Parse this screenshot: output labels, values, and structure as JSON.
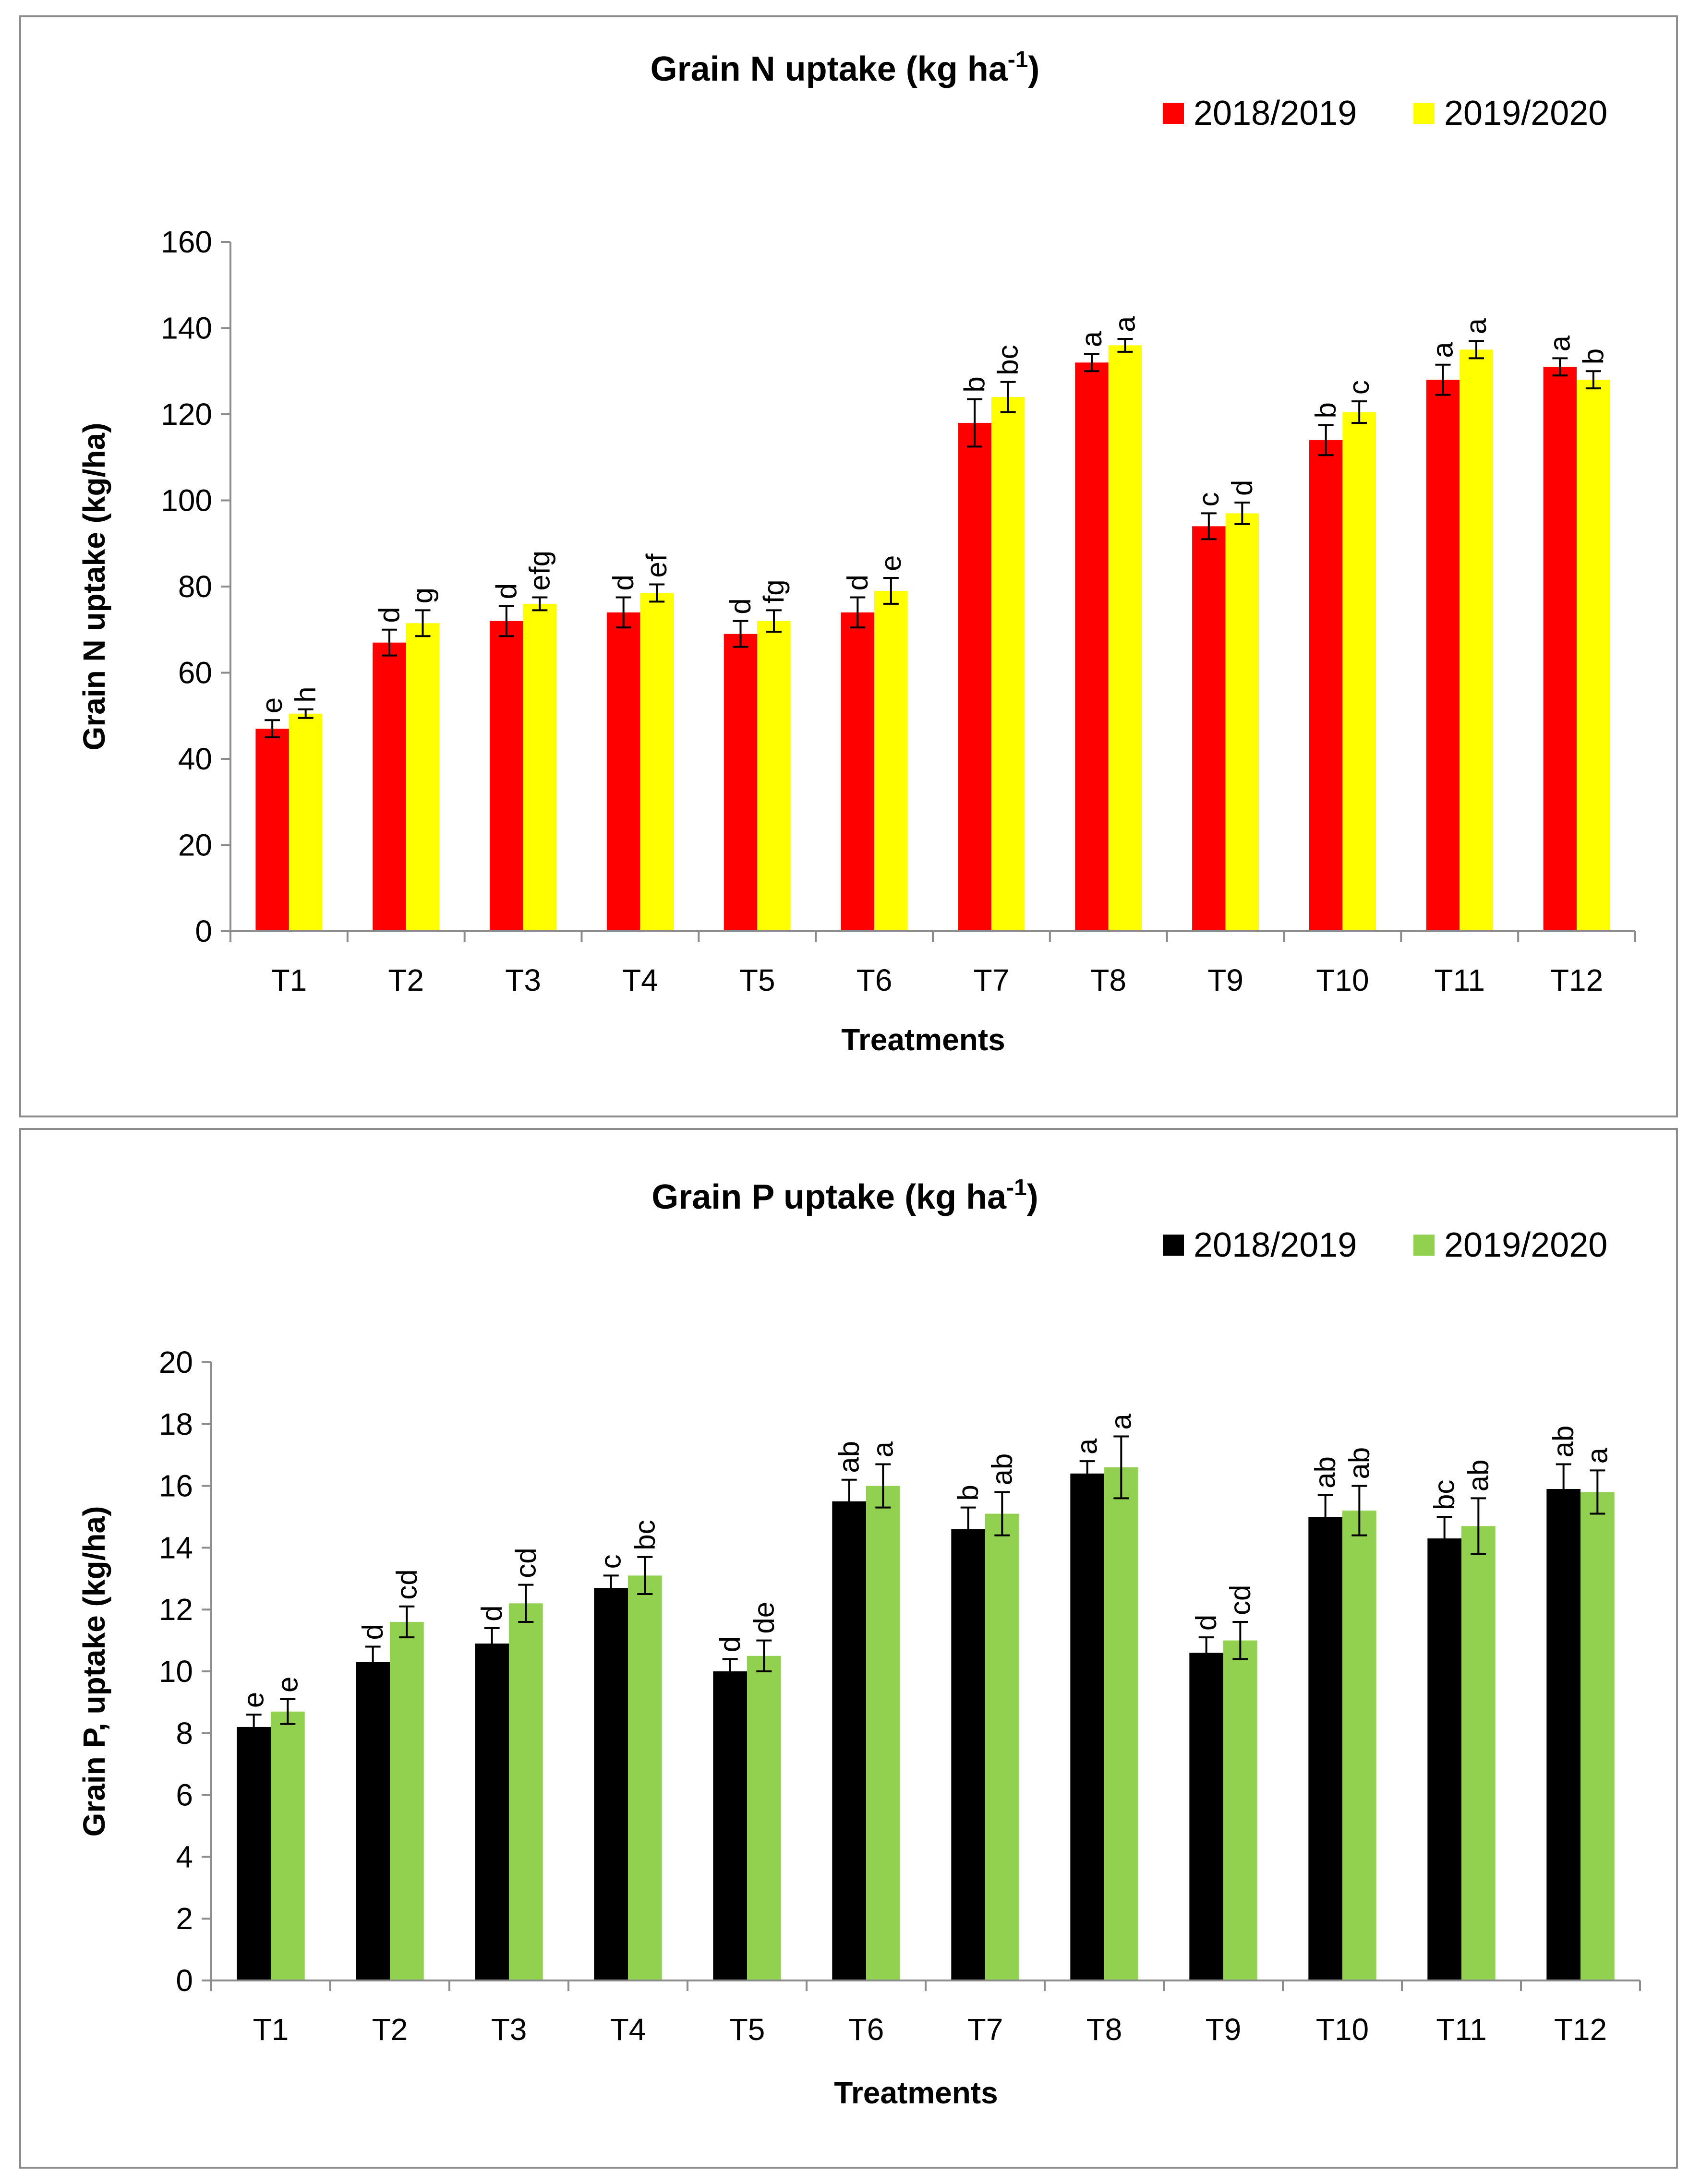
{
  "chart_data": [
    {
      "type": "bar",
      "title": "Grain N uptake (kg ha",
      "title_sup": "-1",
      "title_close": ")",
      "xlabel": "Treatments",
      "ylabel": "Grain N uptake (kg/ha)",
      "ylim": [
        0,
        160
      ],
      "yticks": [
        0,
        20,
        40,
        60,
        80,
        100,
        120,
        140,
        160
      ],
      "legend_position": "top-right",
      "categories": [
        "T1",
        "T2",
        "T3",
        "T4",
        "T5",
        "T6",
        "T7",
        "T8",
        "T9",
        "T10",
        "T11",
        "T12"
      ],
      "series": [
        {
          "name": "2018/2019",
          "color": "#ff0000",
          "values": [
            47,
            67,
            72,
            74,
            69,
            74,
            118,
            132,
            94,
            114,
            128,
            131
          ],
          "errors": [
            2,
            3,
            3.5,
            3.5,
            3,
            3.5,
            5.5,
            2,
            3,
            3.5,
            3.5,
            2
          ],
          "letters": [
            "e",
            "d",
            "d",
            "d",
            "d",
            "d",
            "b",
            "a",
            "c",
            "b",
            "a",
            "a"
          ]
        },
        {
          "name": "2019/2020",
          "color": "#ffff00",
          "values": [
            50.5,
            71.5,
            76,
            78.5,
            72,
            79,
            124,
            136,
            97,
            120.5,
            135,
            128
          ],
          "errors": [
            1,
            3,
            1.5,
            2,
            2.5,
            3,
            3.5,
            1.5,
            2.5,
            2.5,
            2,
            2
          ],
          "letters": [
            "h",
            "g",
            "efg",
            "ef",
            "fg",
            "e",
            "bc",
            "a",
            "d",
            "c",
            "a",
            "b"
          ]
        }
      ]
    },
    {
      "type": "bar",
      "title": "Grain P uptake (kg ha",
      "title_sup": "-1",
      "title_close": ")",
      "xlabel": "Treatments",
      "ylabel": "Grain P, uptake (kg/ha)",
      "ylim": [
        0,
        20
      ],
      "yticks": [
        0,
        2,
        4,
        6,
        8,
        10,
        12,
        14,
        16,
        18,
        20
      ],
      "legend_position": "top-right",
      "categories": [
        "T1",
        "T2",
        "T3",
        "T4",
        "T5",
        "T6",
        "T7",
        "T8",
        "T9",
        "T10",
        "T11",
        "T12"
      ],
      "series": [
        {
          "name": "2018/2019",
          "color": "#000000",
          "values": [
            8.2,
            10.3,
            10.9,
            12.7,
            10.0,
            15.5,
            14.6,
            16.4,
            10.6,
            15.0,
            14.3,
            15.9
          ],
          "errors": [
            0.4,
            0.5,
            0.5,
            0.4,
            0.4,
            0.7,
            0.7,
            0.4,
            0.5,
            0.7,
            0.7,
            0.8
          ],
          "letters": [
            "e",
            "d",
            "d",
            "c",
            "d",
            "ab",
            "b",
            "a",
            "d",
            "ab",
            "bc",
            "ab"
          ]
        },
        {
          "name": "2019/2020",
          "color": "#92d050",
          "values": [
            8.7,
            11.6,
            12.2,
            13.1,
            10.5,
            16.0,
            15.1,
            16.6,
            11.0,
            15.2,
            14.7,
            15.8
          ],
          "errors": [
            0.4,
            0.5,
            0.6,
            0.6,
            0.5,
            0.7,
            0.7,
            1.0,
            0.6,
            0.8,
            0.9,
            0.7
          ],
          "letters": [
            "e",
            "cd",
            "cd",
            "bc",
            "de",
            "a",
            "ab",
            "a",
            "cd",
            "ab",
            "ab",
            "a"
          ]
        }
      ]
    }
  ]
}
